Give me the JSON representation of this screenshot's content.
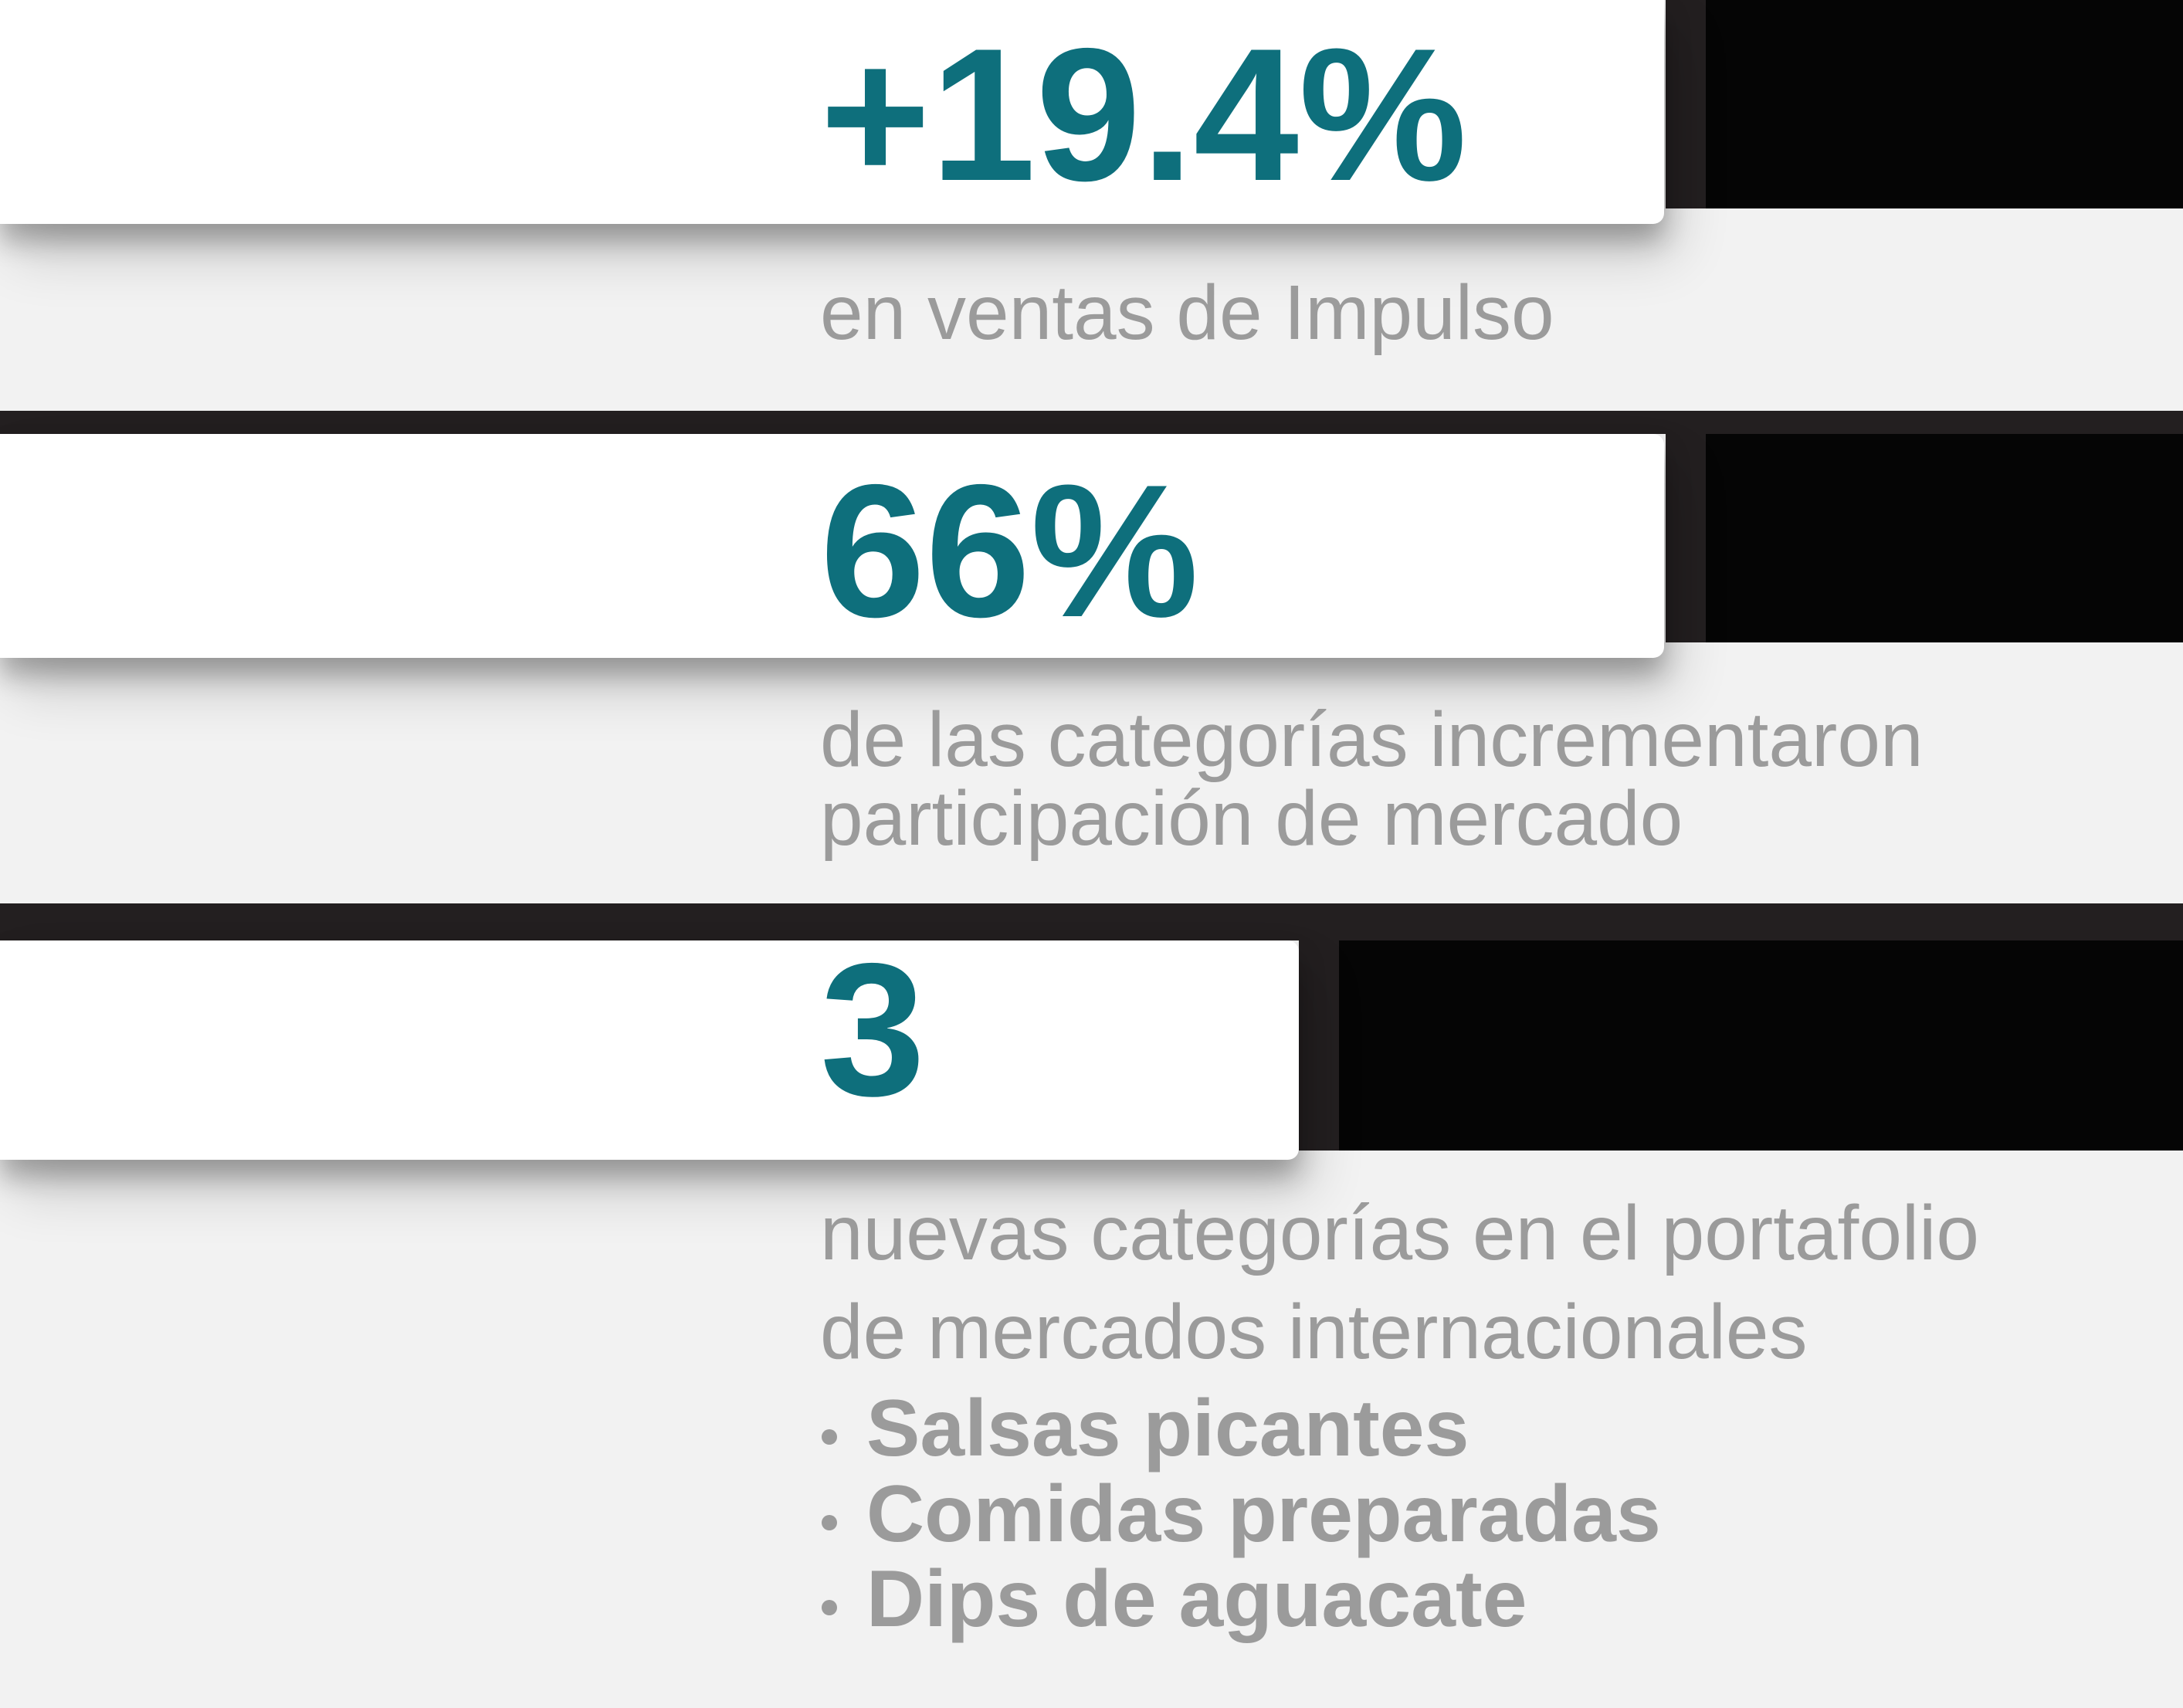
{
  "colors": {
    "accent_teal": "#0e6f7c",
    "background_gray": "#f2f2f2",
    "card_white": "#ffffff",
    "strip_dark": "#231f20",
    "block_black": "#050505",
    "text_gray": "#9b9b9b"
  },
  "stats": [
    {
      "value": "+19.4%",
      "caption": [
        "en ventas de Impulso"
      ],
      "items": []
    },
    {
      "value": "66%",
      "caption": [
        "de las categorías incrementaron",
        "participación de mercado"
      ],
      "items": []
    },
    {
      "value": "3",
      "caption": [
        "nuevas categorías en el portafolio",
        "de mercados internacionales"
      ],
      "items": [
        "Salsas picantes",
        "Comidas preparadas",
        "Dips de aguacate"
      ]
    }
  ]
}
